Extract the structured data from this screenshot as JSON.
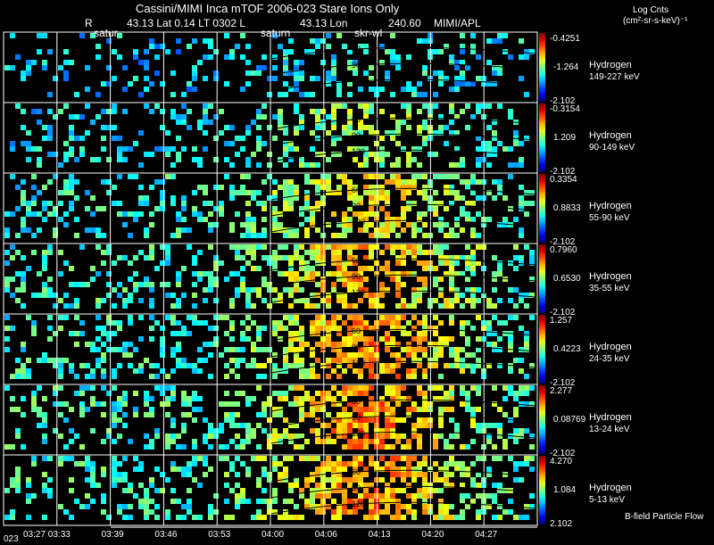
{
  "header": {
    "title": "Cassini/MIMI Inca mTOF  2006-023   Stare   Ions Only",
    "r_label": "R",
    "lat_lt": "43.13 Lat 0.14 LT 0302 L",
    "lon": "43.13 Lon",
    "val": "240.60",
    "org": "MIMI/APL",
    "units_line1": "Log Cnts",
    "units_line2": "(cm²-sr-s-keV)⁻¹"
  },
  "markers": [
    "satur",
    "saturn",
    "skr-wl"
  ],
  "footer": {
    "bfield": "B-field Particle Flow",
    "date": "023"
  },
  "chart_data": {
    "type": "heatmap",
    "title": "Cassini/MIMI Inca mTOF  2006-023   Stare   Ions Only",
    "x_ticks": [
      "03:27",
      "03:33",
      "03:39",
      "03:46",
      "03:53",
      "04:00",
      "04:06",
      "04:13",
      "04:20",
      "04:27"
    ],
    "contour_labels": [
      "30",
      "60",
      "90",
      "120",
      "150"
    ],
    "panels": [
      {
        "species": "Hydrogen",
        "energy": "149-227 keV",
        "max": "-0.4251",
        "mid": "-1.264",
        "min": "-2.102",
        "intensity": 0.15
      },
      {
        "species": "Hydrogen",
        "energy": "90-149 keV",
        "max": "-0.3154",
        "mid": "1.209",
        "min": "-2.102",
        "intensity": 0.35
      },
      {
        "species": "Hydrogen",
        "energy": "55-90 keV",
        "max": "0.3354",
        "mid": "0.8833",
        "min": "-2.102",
        "intensity": 0.55
      },
      {
        "species": "Hydrogen",
        "energy": "35-55 keV",
        "max": "0.7960",
        "mid": "0.6530",
        "min": "-2.102",
        "intensity": 0.65
      },
      {
        "species": "Hydrogen",
        "energy": "24-35 keV",
        "max": "1.257",
        "mid": "0.4223",
        "min": "-2.102",
        "intensity": 0.7
      },
      {
        "species": "Hydrogen",
        "energy": "13-24 keV",
        "max": "2.277",
        "mid": "0.08769",
        "min": "-2.102",
        "intensity": 0.72
      },
      {
        "species": "Hydrogen",
        "energy": "5-13 keV",
        "max": "4.270",
        "mid": "1.084",
        "min": "2.102",
        "intensity": 0.7
      }
    ]
  }
}
